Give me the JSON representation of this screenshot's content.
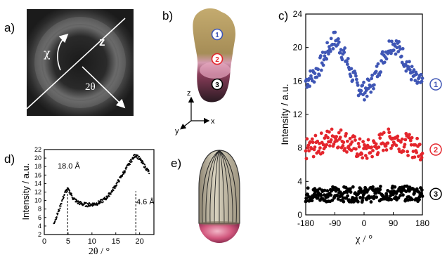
{
  "panels": {
    "a": {
      "label": "a)",
      "axis_z": "z",
      "chi": "χ",
      "two_theta": "2θ"
    },
    "b": {
      "label": "b)",
      "regions": [
        "1",
        "2",
        "3"
      ],
      "axes": {
        "z": "z",
        "y": "y",
        "x": "x"
      }
    },
    "c": {
      "label": "c)",
      "markers": [
        "1",
        "2",
        "3"
      ]
    },
    "d": {
      "label": "d)",
      "annotations": [
        "18.0 Å",
        "4.6 Å"
      ]
    },
    "e": {
      "label": "e)"
    }
  },
  "colors": {
    "series1": "#3f56b5",
    "series2": "#e4252c",
    "series3": "#000000",
    "gold": "#b39a5c",
    "pink": "#d06486"
  },
  "chart_data": [
    {
      "type": "scatter",
      "panel": "c",
      "xlabel": "χ / °",
      "ylabel": "Intensity / a.u.",
      "xlim": [
        -180,
        180
      ],
      "ylim": [
        0,
        24
      ],
      "xticks": [
        -180,
        -90,
        0,
        90,
        180
      ],
      "yticks": [
        0,
        4,
        8,
        12,
        16,
        20,
        24
      ],
      "series": [
        {
          "marker": "1",
          "x": [
            -180,
            -160,
            -140,
            -120,
            -100,
            -90,
            -80,
            -60,
            -40,
            -20,
            0,
            20,
            40,
            60,
            80,
            90,
            100,
            120,
            140,
            160,
            180
          ],
          "y": [
            16,
            16.5,
            17.5,
            19,
            20.6,
            21,
            20.5,
            19,
            17,
            15.4,
            14.8,
            15.4,
            17,
            19,
            20.3,
            20.6,
            20.2,
            19,
            17.4,
            16,
            15.6
          ]
        },
        {
          "marker": "2",
          "x": [
            -180,
            -150,
            -120,
            -90,
            -60,
            -30,
            0,
            30,
            60,
            90,
            120,
            150,
            180
          ],
          "y": [
            7.8,
            8.2,
            8.8,
            9.4,
            8.9,
            8.2,
            7.6,
            8,
            8.8,
            9.2,
            8.7,
            8.1,
            7.8
          ]
        },
        {
          "marker": "3",
          "x": [
            -180,
            -90,
            0,
            90,
            180
          ],
          "y": [
            2.4,
            2.5,
            2.4,
            2.6,
            2.5
          ]
        }
      ]
    },
    {
      "type": "scatter",
      "panel": "d",
      "xlabel": "2θ / °",
      "ylabel": "Intensity / a.u.",
      "xlim": [
        0,
        23
      ],
      "ylim": [
        2,
        22
      ],
      "xticks": [
        0,
        5,
        10,
        15,
        20
      ],
      "yticks": [
        2,
        4,
        6,
        8,
        10,
        12,
        14,
        16,
        18,
        20,
        22
      ],
      "markers_x": [
        4.9,
        19.2
      ],
      "series": [
        {
          "x": [
            2,
            2.5,
            3,
            3.5,
            4,
            4.5,
            4.9,
            5.5,
            6,
            7,
            8,
            9,
            10,
            11,
            12,
            13,
            14,
            15,
            16,
            17,
            18,
            19,
            19.2,
            20,
            21,
            22
          ],
          "y": [
            4.8,
            6,
            7.5,
            9.2,
            10.8,
            12.2,
            12.6,
            11.8,
            10.6,
            9.6,
            9.2,
            9,
            9.1,
            9.3,
            9.8,
            10.6,
            11.9,
            13.6,
            15.4,
            17.2,
            19,
            20.6,
            20.8,
            19.8,
            18.2,
            16.6
          ]
        }
      ]
    }
  ]
}
